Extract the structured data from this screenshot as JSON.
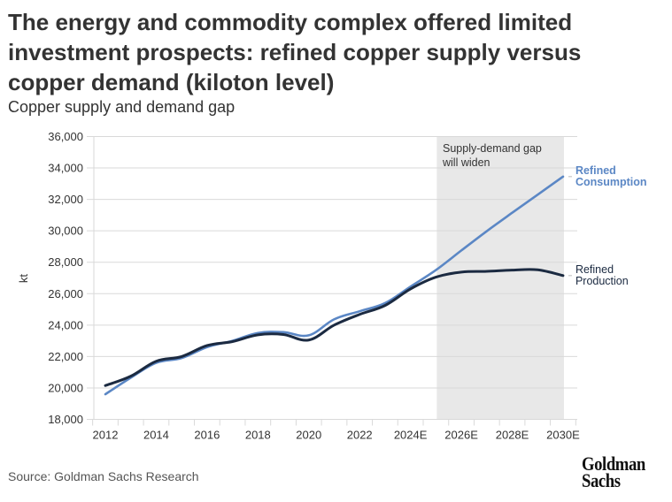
{
  "header": {
    "title": "The energy and commodity complex offered limited investment prospects: refined copper supply versus copper demand (kiloton level)",
    "subtitle": "Copper supply and demand gap"
  },
  "footer": {
    "source": "Source: Goldman Sachs Research",
    "logo_line1": "Goldman",
    "logo_line2": "Sachs"
  },
  "chart_data": {
    "type": "line",
    "title": "Copper supply and demand gap",
    "xlabel": "",
    "ylabel": "kt",
    "x": [
      2012,
      2013,
      2014,
      2015,
      2016,
      2017,
      2018,
      2019,
      2020,
      2021,
      2022,
      2023,
      2024,
      2025,
      2026,
      2027,
      2028,
      2029,
      2030
    ],
    "xtick_labels": [
      "2012",
      "2014",
      "2016",
      "2018",
      "2020",
      "2022",
      "2024E",
      "2026E",
      "2028E",
      "2030E"
    ],
    "xtick_values": [
      2012,
      2014,
      2016,
      2018,
      2020,
      2022,
      2024,
      2026,
      2028,
      2030
    ],
    "xlim": [
      2011.5,
      2030.5
    ],
    "ylim": [
      18000,
      36000
    ],
    "yticks": [
      18000,
      20000,
      22000,
      24000,
      26000,
      28000,
      30000,
      32000,
      34000,
      36000
    ],
    "ytick_labels": [
      "18,000",
      "20,000",
      "22,000",
      "24,000",
      "26,000",
      "28,000",
      "30,000",
      "32,000",
      "34,000",
      "36,000"
    ],
    "grid": "horizontal",
    "series": [
      {
        "name": "Refined Consumption",
        "label_line1": "Refined",
        "label_line2": "Consumption",
        "color": "#5b87c5",
        "values": [
          19600,
          20650,
          21600,
          21900,
          22600,
          23000,
          23500,
          23550,
          23350,
          24370,
          24880,
          25400,
          26450,
          27500,
          28750,
          29980,
          31150,
          32300,
          33450
        ]
      },
      {
        "name": "Refined Production",
        "label_line1": "Refined",
        "label_line2": "Production",
        "color": "#1b2a41",
        "values": [
          20150,
          20750,
          21700,
          22000,
          22700,
          22950,
          23380,
          23400,
          23050,
          24000,
          24680,
          25250,
          26300,
          27050,
          27370,
          27420,
          27500,
          27520,
          27150
        ]
      }
    ],
    "shaded_region": {
      "x_start": 2025,
      "x_end": 2030,
      "color": "#e8e8e8",
      "annotation_line1": "Supply-demand gap",
      "annotation_line2": "will widen"
    },
    "legend": "inline-right"
  }
}
